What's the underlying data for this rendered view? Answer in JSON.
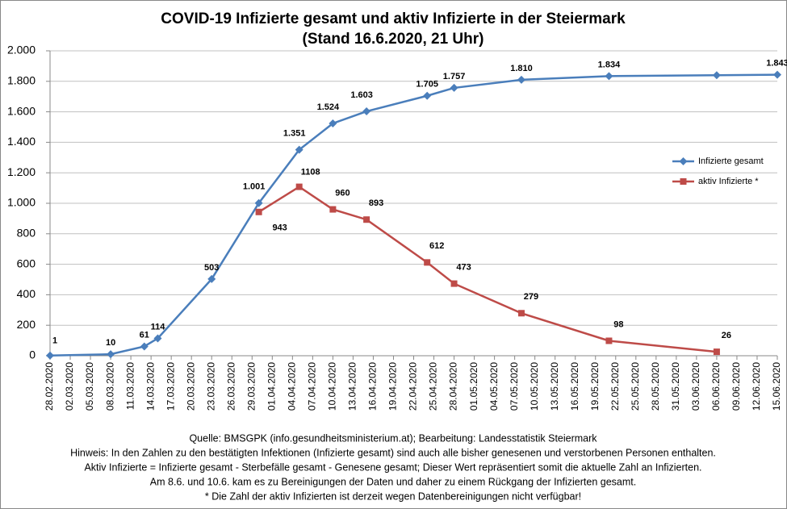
{
  "chart_data": {
    "type": "line",
    "title": [
      "COVID-19 Infizierte gesamt und aktiv Infizierte in der Steiermark",
      "(Stand 16.6.2020, 21 Uhr)"
    ],
    "series": [
      {
        "name": "Infizierte gesamt",
        "color": "#4a7ebb",
        "marker": "diamond",
        "x": [
          "28.02.2020",
          "08.03.2020",
          "13.03.2020",
          "15.03.2020",
          "23.03.2020",
          "30.03.2020",
          "05.04.2020",
          "10.04.2020",
          "15.04.2020",
          "24.04.2020",
          "28.04.2020",
          "08.05.2020",
          "21.05.2020",
          "06.06.2020",
          "15.06.2020"
        ],
        "values": [
          1,
          10,
          61,
          114,
          503,
          1001,
          1351,
          1524,
          1603,
          1705,
          1757,
          1810,
          1834,
          1840,
          1843
        ],
        "value_labels": [
          "1",
          "10",
          "61",
          "114",
          "503",
          "1.001",
          "1.351",
          "1.524",
          "1.603",
          "1.705",
          "1.757",
          "1.810",
          "1.834",
          null,
          "1.843"
        ]
      },
      {
        "name": "aktiv Infizierte *",
        "color": "#be4b48",
        "marker": "square",
        "x": [
          "30.03.2020",
          "05.04.2020",
          "10.04.2020",
          "15.04.2020",
          "24.04.2020",
          "28.04.2020",
          "08.05.2020",
          "21.05.2020",
          "06.06.2020"
        ],
        "values": [
          943,
          1108,
          960,
          893,
          612,
          473,
          279,
          98,
          26
        ]
      }
    ],
    "xlim": [
      "28.02.2020",
      "15.06.2020"
    ],
    "xticks": [
      "28.02.2020",
      "02.03.2020",
      "05.03.2020",
      "08.03.2020",
      "11.03.2020",
      "14.03.2020",
      "17.03.2020",
      "20.03.2020",
      "23.03.2020",
      "26.03.2020",
      "29.03.2020",
      "01.04.2020",
      "04.04.2020",
      "07.04.2020",
      "10.04.2020",
      "13.04.2020",
      "16.04.2020",
      "19.04.2020",
      "22.04.2020",
      "25.04.2020",
      "28.04.2020",
      "01.05.2020",
      "04.05.2020",
      "07.05.2020",
      "10.05.2020",
      "13.05.2020",
      "16.05.2020",
      "19.05.2020",
      "22.05.2020",
      "25.05.2020",
      "28.05.2020",
      "31.05.2020",
      "03.06.2020",
      "06.06.2020",
      "09.06.2020",
      "12.06.2020",
      "15.06.2020"
    ],
    "ylim": [
      0,
      2000
    ],
    "yticks": [
      0,
      200,
      400,
      600,
      800,
      {
        "value": 1000,
        "label": "1.000"
      },
      {
        "value": 1200,
        "label": "1.200"
      },
      {
        "value": 1400,
        "label": "1.400"
      },
      {
        "value": 1600,
        "label": "1.600"
      },
      {
        "value": 1800,
        "label": "1.800"
      },
      {
        "value": 2000,
        "label": "2.000"
      }
    ],
    "grid": true,
    "legend": "right",
    "notes": [
      "Quelle: BMSGPK (info.gesundheitsministerium.at); Bearbeitung: Landesstatistik Steiermark",
      "Hinweis: In den Zahlen zu den bestätigten Infektionen (Infizierte gesamt) sind auch alle bisher genesenen und verstorbenen Personen enthalten.",
      "Aktiv Infizierte = Infizierte gesamt - Sterbefälle gesamt - Genesene gesamt; Dieser Wert repräsentiert somit die aktuelle Zahl an Infizierten.",
      "Am 8.6. und 10.6. kam es zu Bereinigungen der Daten und daher zu einem Rückgang der Infizierten gesamt.",
      "* Die Zahl der aktiv Infizierten ist derzeit wegen Datenbereinigungen nicht verfügbar!"
    ]
  }
}
